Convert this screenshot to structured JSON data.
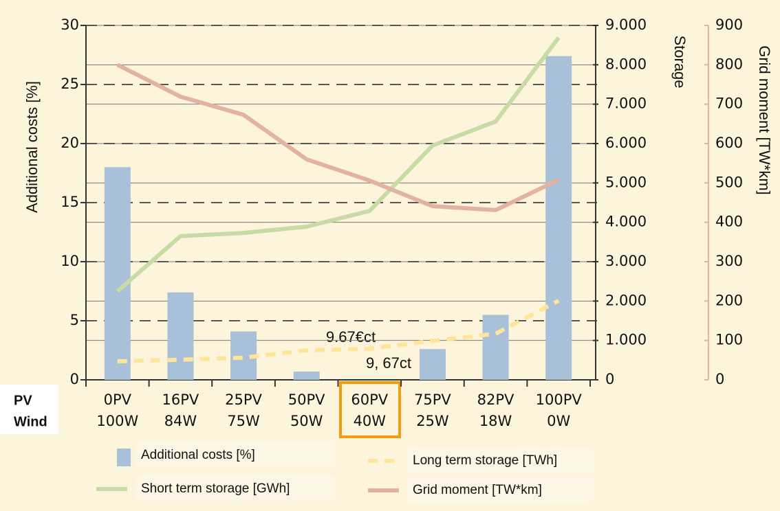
{
  "chart_data": {
    "type": "bar",
    "categories": [
      "0PV",
      "16PV",
      "25PV",
      "50PV",
      "60PV",
      "75PV",
      "82PV",
      "100PV"
    ],
    "categories_row2": [
      "100W",
      "84W",
      "75W",
      "50W",
      "40W",
      "25W",
      "18W",
      "0W"
    ],
    "row_labels": [
      "PV",
      "Wind"
    ],
    "ylabel": "Additional costs [%]",
    "y2label": "Storage",
    "y3label": "Grid moment [TW*km]",
    "ylim": [
      0,
      30
    ],
    "yticks": [
      0,
      5,
      10,
      15,
      20,
      25,
      30
    ],
    "y2lim": [
      0,
      9000
    ],
    "y2ticks": [
      0,
      {
        "value": 1000,
        "label": "1.000"
      },
      {
        "value": 2000,
        "label": "2.000"
      },
      {
        "value": 3000,
        "label": "3.000"
      },
      {
        "value": 4000,
        "label": "4.000"
      },
      {
        "value": 5000,
        "label": "5.000"
      },
      {
        "value": 6000,
        "label": "6.000"
      },
      {
        "value": 7000,
        "label": "7.000"
      },
      {
        "value": 8000,
        "label": "8.000"
      },
      {
        "value": 9000,
        "label": "9.000"
      }
    ],
    "y3lim": [
      0,
      900
    ],
    "y3ticks": [
      0,
      100,
      200,
      300,
      400,
      500,
      600,
      700,
      800,
      900
    ],
    "series": [
      {
        "name": "Additional costs [%]",
        "type": "bar",
        "color": "#a9c0d9",
        "values": [
          18,
          7.4,
          4.1,
          0.7,
          null,
          2.6,
          5.5,
          27.4
        ]
      },
      {
        "name": "Short term storage [GWh]",
        "type": "line",
        "axis": "y2",
        "color": "#c8dba4",
        "values": [
          2250,
          3650,
          3730,
          3890,
          4290,
          5950,
          6560,
          8690
        ]
      },
      {
        "name": "Long term storage [TWh]",
        "type": "dashed",
        "axis": "y2",
        "color": "#fde59a",
        "values": [
          470,
          510,
          560,
          750,
          790,
          990,
          1170,
          2010
        ]
      },
      {
        "name": "Grid moment [TW*km]",
        "type": "line",
        "axis": "y3",
        "color": "#e2b2a2",
        "values": [
          800,
          719,
          673,
          560,
          506,
          441,
          431,
          508
        ]
      }
    ],
    "annotations": [
      "9.67€ct",
      "9, 67ct"
    ]
  }
}
